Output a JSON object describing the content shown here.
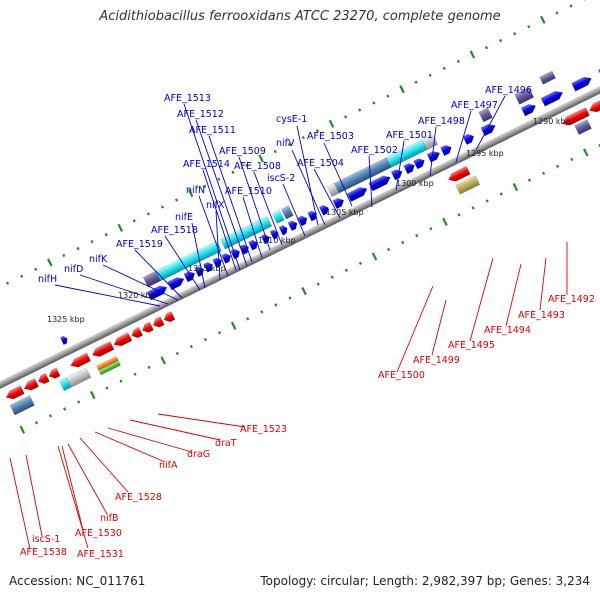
{
  "title": "Acidithiobacillus ferrooxidans ATCC 23270, complete genome",
  "footer": {
    "accession": "Accession: NC_011761",
    "summary": "Topology: circular; Length: 2,982,397 bp; Genes: 3,234"
  },
  "kbp_labels": [
    "1290 kbp",
    "1295 kbp",
    "1300 kbp",
    "1305 kbp",
    "1310 kbp",
    "1315 kbp",
    "1320 kbp",
    "1325 kbp"
  ],
  "forward_labels": [
    "AFE_1496",
    "AFE_1497",
    "AFE_1498",
    "AFE_1501",
    "AFE_1502",
    "AFE_1503",
    "AFE_1504",
    "cysE-1",
    "nifV",
    "iscS-2",
    "AFE_1508",
    "AFE_1509",
    "AFE_1510",
    "AFE_1511",
    "AFE_1512",
    "AFE_1513",
    "AFE_1514",
    "nifN",
    "nifX",
    "nifE",
    "AFE_1518",
    "AFE_1519",
    "nifK",
    "nifD",
    "nifH"
  ],
  "reverse_labels": [
    "AFE_1492",
    "AFE_1493",
    "AFE_1494",
    "AFE_1495",
    "AFE_1499",
    "AFE_1500",
    "AFE_1523",
    "draT",
    "draG",
    "nifA",
    "AFE_1528",
    "nifB",
    "AFE_1530",
    "AFE_1531",
    "iscS-1",
    "AFE_1538"
  ],
  "colors": {
    "forward_gene": "#0000e0",
    "reverse_gene": "#ee0000",
    "forward_label": "#0000cc",
    "reverse_label": "#dd0000",
    "backbone": "#888888",
    "tick": "#228b22"
  }
}
